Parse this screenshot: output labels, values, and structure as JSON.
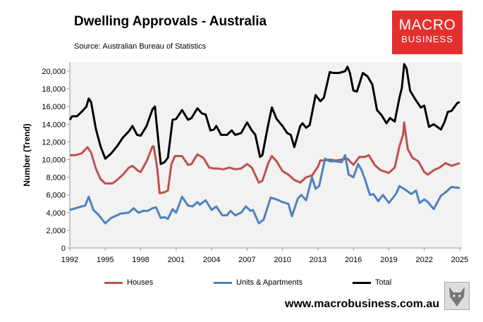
{
  "header": {
    "title": "Dwelling Approvals - Australia",
    "source": "Source: Australian Bureau of Statistics"
  },
  "logo": {
    "line1": "MACRO",
    "line2": "BUSINESS",
    "color": "#e3302f"
  },
  "footer": {
    "url": "www.macrobusiness.com.au",
    "wolf_icon": "wolf-icon"
  },
  "chart_data": {
    "type": "line",
    "title": "Dwelling Approvals - Australia",
    "xlabel": "",
    "ylabel": "Number (Trend)",
    "xlim": [
      1992,
      2025
    ],
    "ylim": [
      0,
      21000
    ],
    "xticks": [
      "1992",
      "1995",
      "1998",
      "2001",
      "2004",
      "2007",
      "2010",
      "2013",
      "2016",
      "2019",
      "2022",
      "2025"
    ],
    "yticks": [
      "0",
      "2,000",
      "4,000",
      "6,000",
      "8,000",
      "10,000",
      "12,000",
      "14,000",
      "16,000",
      "18,000",
      "20,000"
    ],
    "legend": "bottom",
    "series": [
      {
        "name": "Houses",
        "color": "#c0504d",
        "points": [
          [
            1992,
            10500
          ],
          [
            1992.5,
            10500
          ],
          [
            1993,
            10700
          ],
          [
            1993.5,
            11400
          ],
          [
            1993.8,
            10800
          ],
          [
            1994.2,
            9000
          ],
          [
            1994.6,
            7800
          ],
          [
            1995,
            7300
          ],
          [
            1995.6,
            7300
          ],
          [
            1996,
            7700
          ],
          [
            1996.5,
            8300
          ],
          [
            1997,
            9100
          ],
          [
            1997.3,
            9300
          ],
          [
            1997.8,
            8700
          ],
          [
            1998,
            8600
          ],
          [
            1998.5,
            9800
          ],
          [
            1999,
            11500
          ],
          [
            1999.1,
            11500
          ],
          [
            1999.4,
            9000
          ],
          [
            1999.6,
            6200
          ],
          [
            2000,
            6300
          ],
          [
            2000.3,
            6500
          ],
          [
            2000.6,
            9500
          ],
          [
            2000.9,
            10400
          ],
          [
            2001.5,
            10400
          ],
          [
            2002,
            9400
          ],
          [
            2002.3,
            9500
          ],
          [
            2002.8,
            10600
          ],
          [
            2003.3,
            10200
          ],
          [
            2003.8,
            9100
          ],
          [
            2004.2,
            9000
          ],
          [
            2004.5,
            9000
          ],
          [
            2005,
            8900
          ],
          [
            2005.5,
            9100
          ],
          [
            2006,
            8900
          ],
          [
            2006.5,
            9000
          ],
          [
            2007,
            9500
          ],
          [
            2007.4,
            9100
          ],
          [
            2008,
            7400
          ],
          [
            2008.3,
            7600
          ],
          [
            2008.8,
            9600
          ],
          [
            2009.1,
            10400
          ],
          [
            2009.5,
            9800
          ],
          [
            2010,
            8700
          ],
          [
            2010.5,
            8300
          ],
          [
            2011,
            7700
          ],
          [
            2011.5,
            7400
          ],
          [
            2012,
            8000
          ],
          [
            2012.5,
            8200
          ],
          [
            2013,
            9200
          ],
          [
            2013.2,
            9900
          ],
          [
            2013.6,
            9900
          ],
          [
            2014,
            10000
          ],
          [
            2014.5,
            9900
          ],
          [
            2015,
            10000
          ],
          [
            2015.5,
            10100
          ],
          [
            2016,
            9400
          ],
          [
            2016.5,
            10300
          ],
          [
            2017,
            10300
          ],
          [
            2017.3,
            10500
          ],
          [
            2017.8,
            9400
          ],
          [
            2018.3,
            8800
          ],
          [
            2019,
            8500
          ],
          [
            2019.5,
            9100
          ],
          [
            2019.9,
            11500
          ],
          [
            2020.2,
            12800
          ],
          [
            2020.3,
            14200
          ],
          [
            2020.6,
            11200
          ],
          [
            2021,
            10200
          ],
          [
            2021.5,
            9800
          ],
          [
            2022,
            8600
          ],
          [
            2022.3,
            8300
          ],
          [
            2022.8,
            8800
          ],
          [
            2023.3,
            9100
          ],
          [
            2023.8,
            9600
          ],
          [
            2024.3,
            9300
          ],
          [
            2025,
            9600
          ]
        ]
      },
      {
        "name": "Units & Apartments",
        "color": "#4f81bd",
        "points": [
          [
            1992,
            4300
          ],
          [
            1992.5,
            4500
          ],
          [
            1993,
            4700
          ],
          [
            1993.3,
            4800
          ],
          [
            1993.6,
            5800
          ],
          [
            1994,
            4300
          ],
          [
            1994.4,
            3800
          ],
          [
            1995,
            2800
          ],
          [
            1995.5,
            3400
          ],
          [
            1996,
            3700
          ],
          [
            1996.3,
            3900
          ],
          [
            1997,
            4000
          ],
          [
            1997.4,
            4500
          ],
          [
            1997.8,
            4000
          ],
          [
            1998.2,
            4200
          ],
          [
            1998.6,
            4200
          ],
          [
            1999,
            4500
          ],
          [
            1999.3,
            4600
          ],
          [
            1999.7,
            3400
          ],
          [
            2000,
            3500
          ],
          [
            2000.3,
            3300
          ],
          [
            2000.7,
            4400
          ],
          [
            2001,
            4000
          ],
          [
            2001.5,
            5800
          ],
          [
            2002,
            4800
          ],
          [
            2002.4,
            4700
          ],
          [
            2002.8,
            5200
          ],
          [
            2003,
            4900
          ],
          [
            2003.5,
            5400
          ],
          [
            2004,
            4300
          ],
          [
            2004.4,
            4700
          ],
          [
            2004.9,
            3700
          ],
          [
            2005.3,
            3700
          ],
          [
            2005.6,
            4200
          ],
          [
            2006,
            3700
          ],
          [
            2006.5,
            4000
          ],
          [
            2006.9,
            4700
          ],
          [
            2007.3,
            4200
          ],
          [
            2007.5,
            4300
          ],
          [
            2008,
            2800
          ],
          [
            2008.4,
            3200
          ],
          [
            2009,
            5700
          ],
          [
            2009.5,
            5500
          ],
          [
            2010,
            5200
          ],
          [
            2010.5,
            5000
          ],
          [
            2010.8,
            3600
          ],
          [
            2011.3,
            5600
          ],
          [
            2011.6,
            6000
          ],
          [
            2012,
            5400
          ],
          [
            2012.5,
            8000
          ],
          [
            2012.8,
            6700
          ],
          [
            2013.1,
            7000
          ],
          [
            2013.6,
            10100
          ],
          [
            2014,
            9800
          ],
          [
            2014.5,
            9800
          ],
          [
            2015,
            9700
          ],
          [
            2015.3,
            10500
          ],
          [
            2015.6,
            8300
          ],
          [
            2016,
            8000
          ],
          [
            2016.4,
            9500
          ],
          [
            2016.7,
            8800
          ],
          [
            2017,
            7700
          ],
          [
            2017.4,
            6000
          ],
          [
            2017.7,
            6100
          ],
          [
            2018.1,
            5300
          ],
          [
            2018.5,
            6000
          ],
          [
            2019,
            5100
          ],
          [
            2019.6,
            6100
          ],
          [
            2019.9,
            7000
          ],
          [
            2020.4,
            6600
          ],
          [
            2020.9,
            6100
          ],
          [
            2021.3,
            6500
          ],
          [
            2021.6,
            5100
          ],
          [
            2022,
            5500
          ],
          [
            2022.3,
            5200
          ],
          [
            2022.8,
            4400
          ],
          [
            2023.4,
            5900
          ],
          [
            2023.8,
            6300
          ],
          [
            2024.3,
            6900
          ],
          [
            2025,
            6800
          ]
        ]
      },
      {
        "name": "Total",
        "color": "#000000",
        "points": [
          [
            1992,
            14500
          ],
          [
            1992.2,
            14900
          ],
          [
            1992.6,
            14900
          ],
          [
            1993,
            15400
          ],
          [
            1993.4,
            16000
          ],
          [
            1993.6,
            16900
          ],
          [
            1993.8,
            16500
          ],
          [
            1994.2,
            13500
          ],
          [
            1994.6,
            11500
          ],
          [
            1995,
            10100
          ],
          [
            1995.5,
            10700
          ],
          [
            1996,
            11500
          ],
          [
            1996.5,
            12500
          ],
          [
            1997,
            13200
          ],
          [
            1997.3,
            13800
          ],
          [
            1997.7,
            12800
          ],
          [
            1998,
            12700
          ],
          [
            1998.5,
            13800
          ],
          [
            1999,
            15700
          ],
          [
            1999.2,
            16000
          ],
          [
            1999.5,
            12000
          ],
          [
            1999.7,
            9500
          ],
          [
            2000,
            9700
          ],
          [
            2000.3,
            10200
          ],
          [
            2000.7,
            14500
          ],
          [
            2001,
            14600
          ],
          [
            2001.5,
            15600
          ],
          [
            2002,
            14500
          ],
          [
            2002.3,
            14700
          ],
          [
            2002.8,
            15800
          ],
          [
            2003.2,
            15200
          ],
          [
            2003.5,
            15100
          ],
          [
            2003.9,
            13300
          ],
          [
            2004.2,
            13400
          ],
          [
            2004.4,
            13800
          ],
          [
            2004.8,
            12800
          ],
          [
            2005.3,
            12800
          ],
          [
            2005.7,
            13300
          ],
          [
            2006,
            12800
          ],
          [
            2006.5,
            13000
          ],
          [
            2007,
            14200
          ],
          [
            2007.4,
            13300
          ],
          [
            2007.7,
            12800
          ],
          [
            2008.1,
            10300
          ],
          [
            2008.3,
            10500
          ],
          [
            2008.8,
            14000
          ],
          [
            2009.1,
            15900
          ],
          [
            2009.5,
            14600
          ],
          [
            2010,
            13800
          ],
          [
            2010.4,
            13000
          ],
          [
            2010.7,
            12800
          ],
          [
            2011,
            11400
          ],
          [
            2011.5,
            13800
          ],
          [
            2011.7,
            14100
          ],
          [
            2012,
            13600
          ],
          [
            2012.3,
            13900
          ],
          [
            2012.8,
            17300
          ],
          [
            2013.2,
            16600
          ],
          [
            2013.5,
            17000
          ],
          [
            2014,
            19900
          ],
          [
            2014.3,
            19800
          ],
          [
            2014.8,
            19800
          ],
          [
            2015.3,
            20000
          ],
          [
            2015.5,
            20500
          ],
          [
            2015.7,
            19800
          ],
          [
            2016,
            17800
          ],
          [
            2016.3,
            17700
          ],
          [
            2016.8,
            19800
          ],
          [
            2017.2,
            19400
          ],
          [
            2017.6,
            18500
          ],
          [
            2018,
            15600
          ],
          [
            2018.4,
            15000
          ],
          [
            2018.8,
            14100
          ],
          [
            2019.1,
            14700
          ],
          [
            2019.5,
            14300
          ],
          [
            2019.9,
            17000
          ],
          [
            2020.1,
            18100
          ],
          [
            2020.3,
            20800
          ],
          [
            2020.5,
            20300
          ],
          [
            2020.8,
            17800
          ],
          [
            2021.2,
            16900
          ],
          [
            2021.7,
            15900
          ],
          [
            2022,
            16100
          ],
          [
            2022.4,
            13700
          ],
          [
            2022.8,
            14000
          ],
          [
            2023.4,
            13400
          ],
          [
            2023.7,
            14200
          ],
          [
            2024,
            15400
          ],
          [
            2024.3,
            15500
          ],
          [
            2024.8,
            16400
          ],
          [
            2025,
            16500
          ]
        ]
      }
    ]
  }
}
